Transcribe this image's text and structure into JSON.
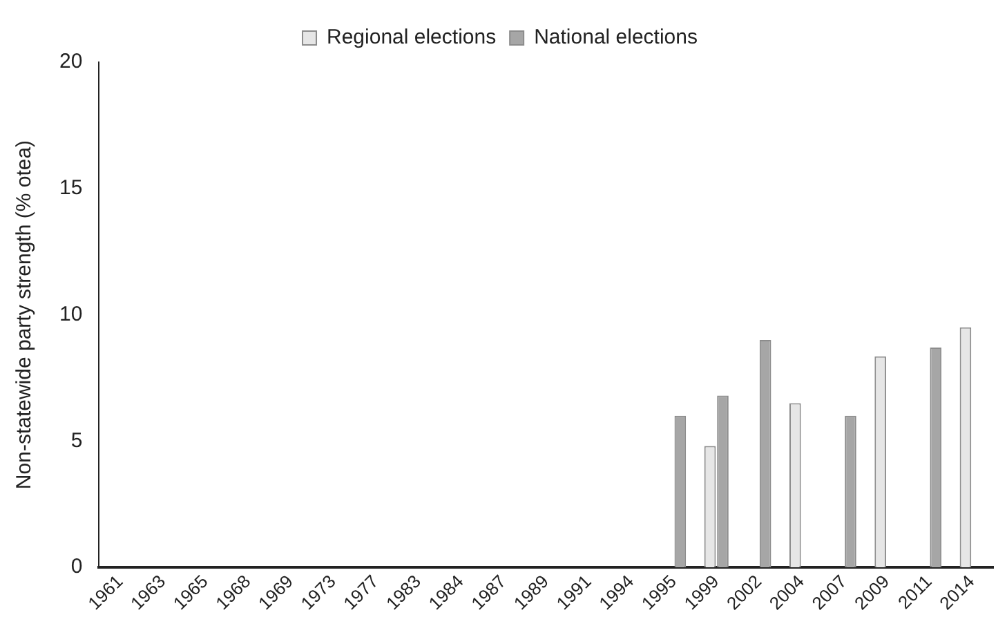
{
  "chart_data": {
    "type": "bar",
    "ylabel": "Non-statewide party strength (% otea)",
    "categories": [
      "1961",
      "1963",
      "1965",
      "1968",
      "1969",
      "1973",
      "1977",
      "1983",
      "1984",
      "1987",
      "1989",
      "1991",
      "1994",
      "1995",
      "1999",
      "2002",
      "2004",
      "2007",
      "2009",
      "2011",
      "2014"
    ],
    "series": [
      {
        "name": "Regional elections",
        "color": "#e6e6e6",
        "values": [
          null,
          null,
          null,
          null,
          null,
          null,
          null,
          null,
          null,
          null,
          null,
          null,
          null,
          null,
          4.8,
          null,
          6.5,
          null,
          8.35,
          null,
          9.5
        ]
      },
      {
        "name": "National elections",
        "color": "#a6a6a6",
        "values": [
          null,
          null,
          null,
          null,
          null,
          null,
          null,
          null,
          null,
          null,
          null,
          null,
          null,
          6.0,
          6.8,
          9.0,
          null,
          6.0,
          null,
          8.7,
          null
        ]
      }
    ],
    "ylim": [
      0,
      20
    ],
    "yticks": [
      0,
      5,
      10,
      15,
      20
    ],
    "grid": false,
    "legend": "top"
  }
}
